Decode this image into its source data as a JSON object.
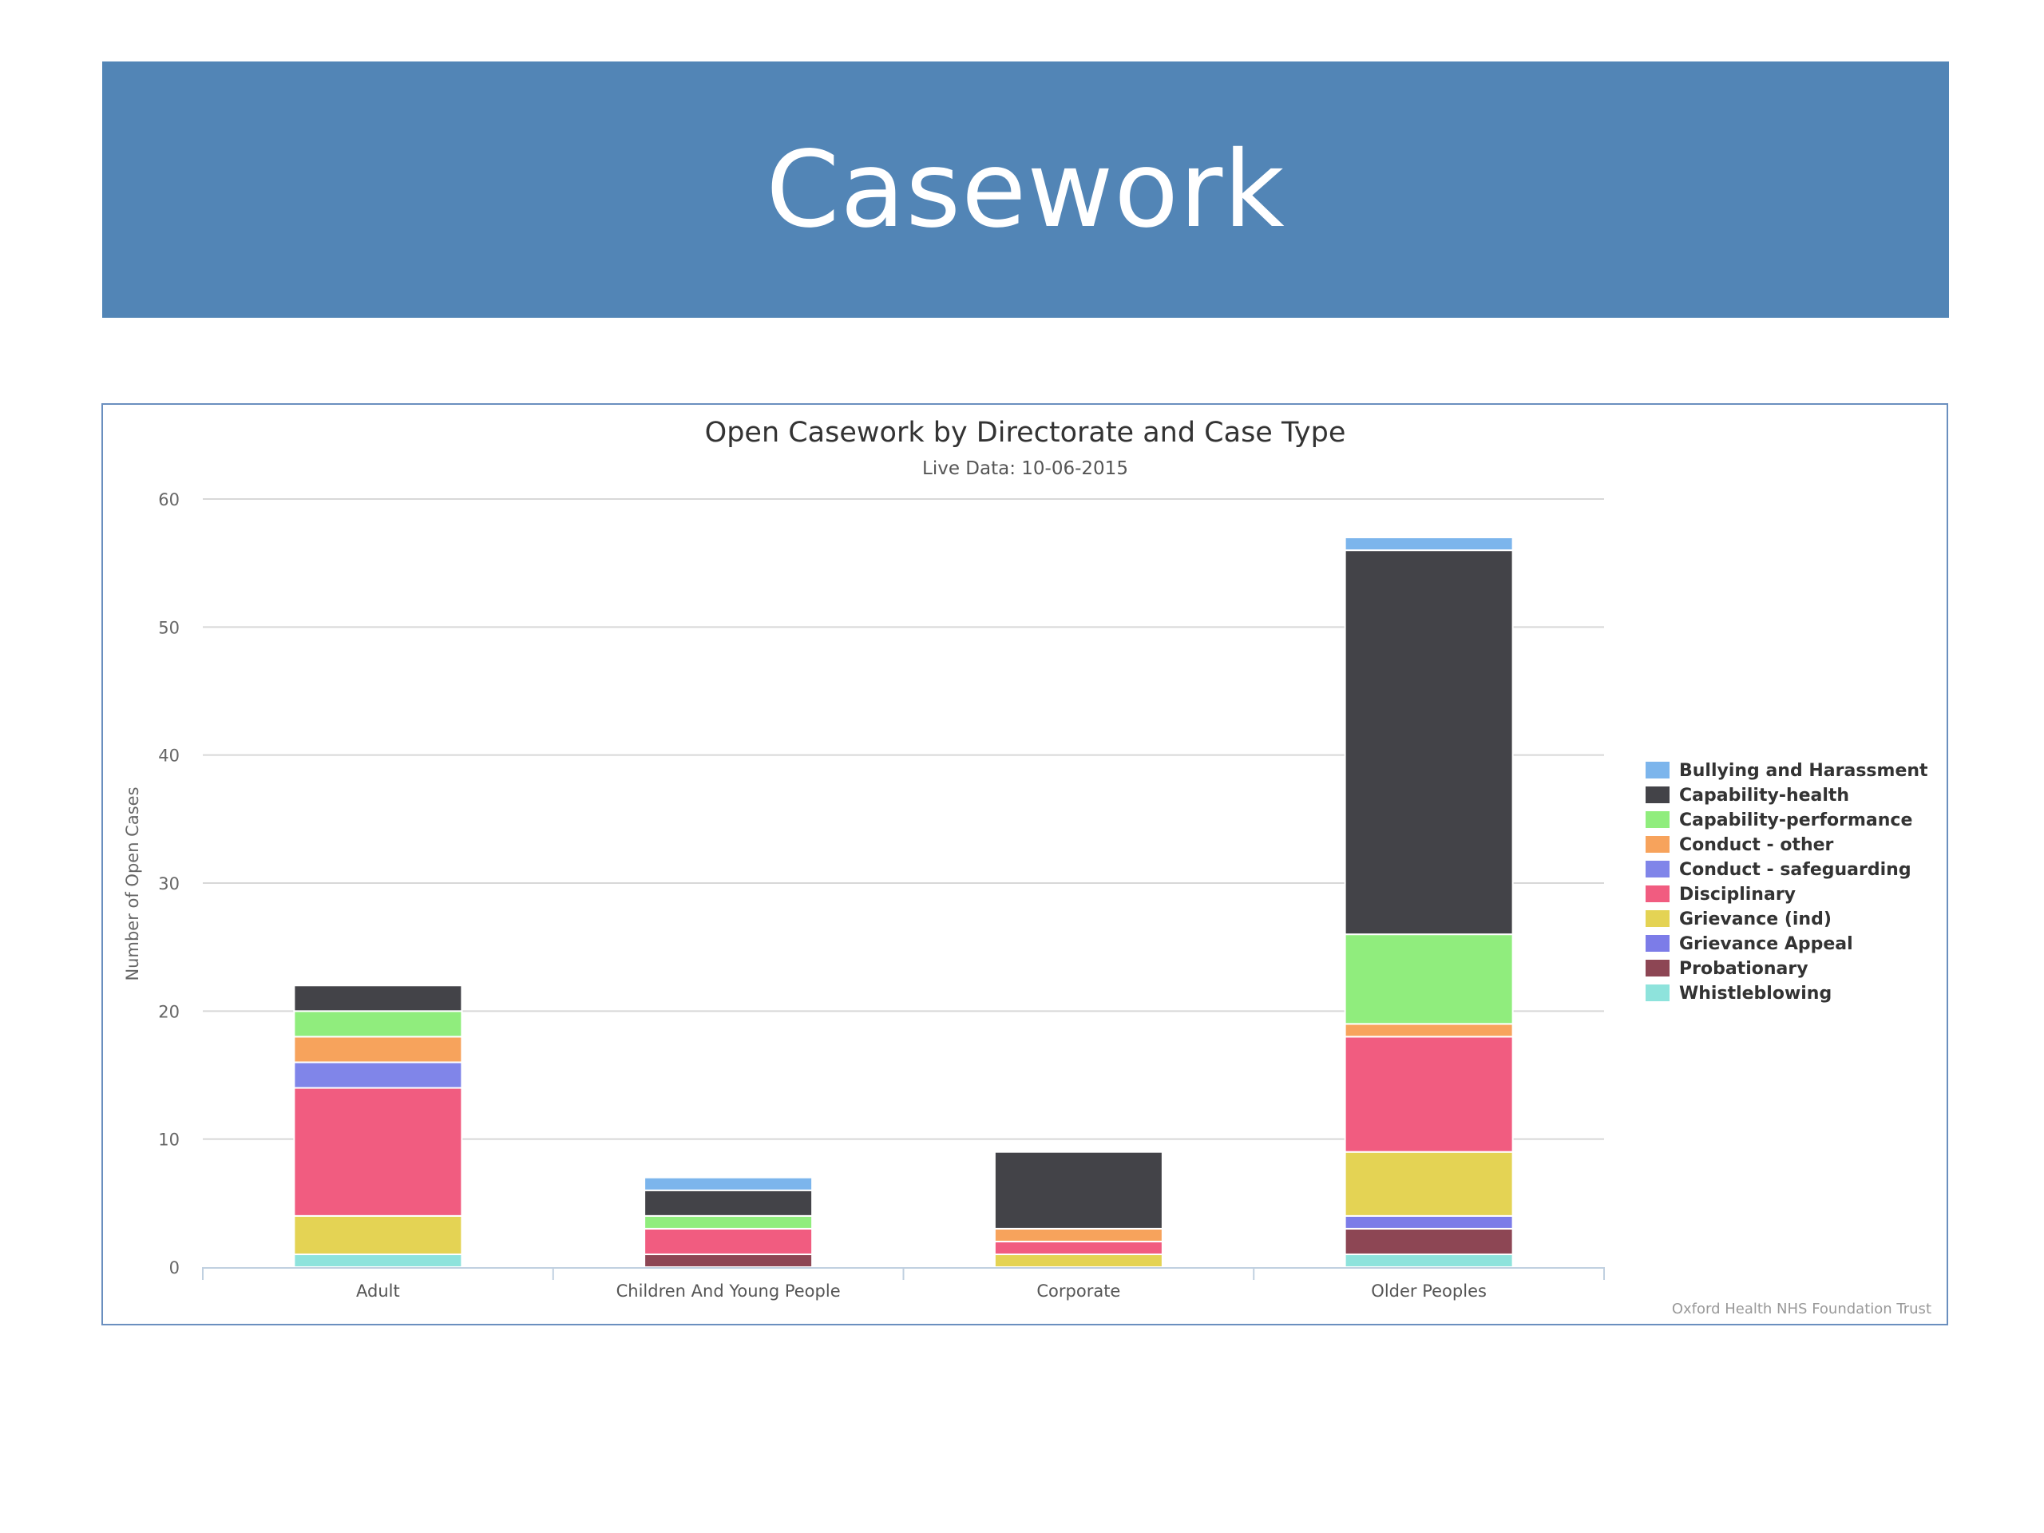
{
  "slide": {
    "title": "Casework"
  },
  "chart_data": {
    "type": "bar",
    "stacked": true,
    "title": "Open Casework by Directorate and Case Type",
    "subtitle": "Live Data: 10-06-2015",
    "xlabel": "",
    "ylabel": "Number of Open Cases",
    "ylim": [
      0,
      60
    ],
    "yticks": [
      0,
      10,
      20,
      30,
      40,
      50,
      60
    ],
    "grid": true,
    "legend_position": "right",
    "credit": "Oxford Health NHS Foundation Trust",
    "categories": [
      "Adult",
      "Children And Young People",
      "Corporate",
      "Older Peoples"
    ],
    "series": [
      {
        "name": "Whistleblowing",
        "color": "#8ee3dc",
        "values": [
          1,
          0,
          0,
          1
        ]
      },
      {
        "name": "Probationary",
        "color": "#8d4654",
        "values": [
          0,
          1,
          0,
          2
        ]
      },
      {
        "name": "Grievance Appeal",
        "color": "#7c7ce8",
        "values": [
          0,
          0,
          0,
          1
        ]
      },
      {
        "name": "Grievance (ind)",
        "color": "#e4d354",
        "values": [
          3,
          0,
          1,
          5
        ]
      },
      {
        "name": "Disciplinary",
        "color": "#f15c80",
        "values": [
          10,
          2,
          1,
          9
        ]
      },
      {
        "name": "Conduct - safeguarding",
        "color": "#8085e9",
        "values": [
          2,
          0,
          0,
          0
        ]
      },
      {
        "name": "Conduct - other",
        "color": "#f7a35c",
        "values": [
          2,
          0,
          1,
          1
        ]
      },
      {
        "name": "Capability-performance",
        "color": "#90ed7d",
        "values": [
          2,
          1,
          0,
          7
        ]
      },
      {
        "name": "Capability-health",
        "color": "#434348",
        "values": [
          2,
          2,
          6,
          30
        ]
      },
      {
        "name": "Bullying and Harassment",
        "color": "#7cb5ec",
        "values": [
          0,
          1,
          0,
          1
        ]
      }
    ],
    "legend_order": [
      "Bullying and Harassment",
      "Capability-health",
      "Capability-performance",
      "Conduct - other",
      "Conduct - safeguarding",
      "Disciplinary",
      "Grievance (ind)",
      "Grievance Appeal",
      "Probationary",
      "Whistleblowing"
    ]
  }
}
